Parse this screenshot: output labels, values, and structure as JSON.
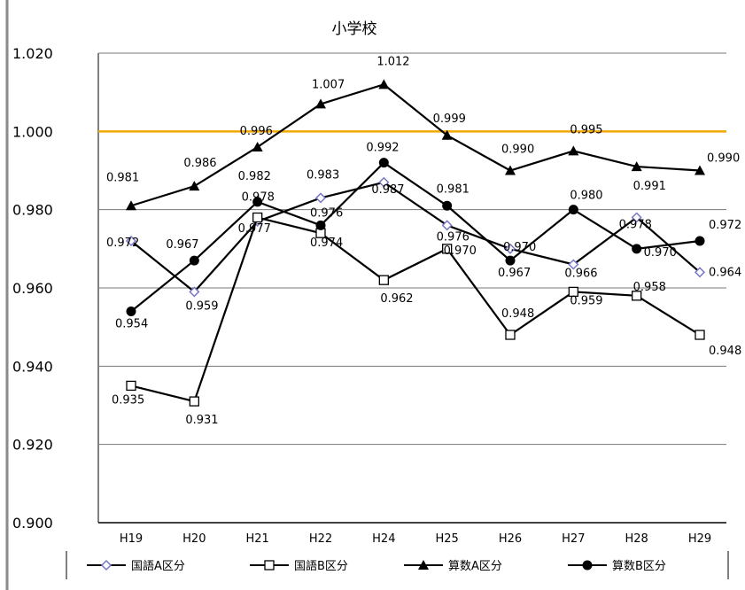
{
  "chart_data": {
    "type": "line",
    "title": "小学校",
    "xlabel": "",
    "ylabel": "",
    "categories": [
      "H19",
      "H20",
      "H21",
      "H22",
      "H24",
      "H25",
      "H26",
      "H27",
      "H28",
      "H29"
    ],
    "ylim": [
      0.9,
      1.02
    ],
    "yticks": [
      "0.900",
      "0.920",
      "0.940",
      "0.960",
      "0.980",
      "1.000",
      "1.020"
    ],
    "grid": true,
    "reference_line": {
      "value": 1.0,
      "color": "#f5a800"
    },
    "legend_position": "bottom",
    "series": [
      {
        "name": "国語A区分",
        "marker": "open-diamond",
        "color": "#7878c8",
        "values": [
          0.972,
          0.959,
          0.977,
          0.983,
          0.987,
          0.976,
          0.97,
          0.966,
          0.978,
          0.964
        ],
        "labels": [
          "0.972",
          "0.959",
          "0.977",
          "0.983",
          "0.987",
          "0.976",
          "0.970",
          "0.966",
          "0.978",
          "0.964"
        ]
      },
      {
        "name": "国語B区分",
        "marker": "open-square",
        "color": "#000000",
        "values": [
          0.935,
          0.931,
          0.978,
          0.974,
          0.962,
          0.97,
          0.948,
          0.959,
          0.958,
          0.948
        ],
        "labels": [
          "0.935",
          "0.931",
          "0.978",
          "0.974",
          "0.962",
          "0.970",
          "0.948",
          "0.959",
          "0.958",
          "0.948"
        ]
      },
      {
        "name": "算数A区分",
        "marker": "triangle",
        "color": "#000000",
        "values": [
          0.981,
          0.986,
          0.996,
          1.007,
          1.012,
          0.999,
          0.99,
          0.995,
          0.991,
          0.99
        ],
        "labels": [
          "0.981",
          "0.986",
          "0.996",
          "1.007",
          "1.012",
          "0.999",
          "0.990",
          "0.995",
          "0.991",
          "0.990"
        ]
      },
      {
        "name": "算数B区分",
        "marker": "circle",
        "color": "#000000",
        "values": [
          0.954,
          0.967,
          0.982,
          0.976,
          0.992,
          0.981,
          0.967,
          0.98,
          0.97,
          0.972
        ],
        "labels": [
          "0.954",
          "0.967",
          "0.982",
          "0.976",
          "0.992",
          "0.981",
          "0.967",
          "0.980",
          "0.970",
          "0.972"
        ]
      }
    ]
  }
}
